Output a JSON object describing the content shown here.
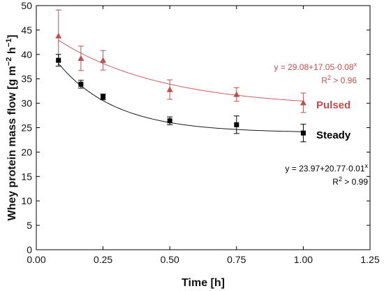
{
  "chart_data": {
    "type": "scatter",
    "title": "",
    "xlabel": "Time [h]",
    "ylabel": "Whey protein mass flow [g m",
    "ylabel_sup1": "−2",
    "ylabel_mid": " h",
    "ylabel_sup2": "−1",
    "ylabel_end": "]",
    "xlim": [
      0.0,
      1.25
    ],
    "ylim": [
      0,
      50
    ],
    "x_ticks": [
      0.0,
      0.25,
      0.5,
      0.75,
      1.0,
      1.25
    ],
    "x_tick_labels": [
      "0.00",
      "0.25",
      "0.50",
      "0.75",
      "1.00",
      "1.25"
    ],
    "y_ticks": [
      0,
      5,
      10,
      15,
      20,
      25,
      30,
      35,
      40,
      45,
      50
    ],
    "y_tick_labels": [
      "0",
      "5",
      "10",
      "15",
      "20",
      "25",
      "30",
      "35",
      "40",
      "45",
      "50"
    ],
    "grid": false,
    "series": [
      {
        "name": "Pulsed",
        "marker": "triangle",
        "color": "#c0504d",
        "x": [
          0.083,
          0.167,
          0.25,
          0.5,
          0.75,
          1.0
        ],
        "y": [
          43.8,
          39.2,
          38.8,
          32.8,
          31.8,
          30.1
        ],
        "err": [
          5.3,
          2.5,
          2.0,
          2.0,
          1.4,
          2.0
        ],
        "fit": {
          "a": 29.08,
          "b": 17.05,
          "c": 0.08
        }
      },
      {
        "name": "Steady",
        "marker": "square",
        "color": "#000000",
        "x": [
          0.083,
          0.167,
          0.25,
          0.5,
          0.75,
          1.0
        ],
        "y": [
          38.8,
          33.9,
          31.3,
          26.4,
          25.6,
          23.9
        ],
        "err": [
          1.2,
          0.8,
          0.6,
          0.8,
          1.8,
          1.8
        ],
        "fit": {
          "a": 23.97,
          "b": 20.77,
          "c": 0.01
        }
      }
    ],
    "annotations": {
      "pulsed_eq_base": "y = 29.08+17.05·0.08",
      "pulsed_eq_sup": "x",
      "pulsed_r2_pre": "R",
      "pulsed_r2_sup": "2",
      "pulsed_r2_post": " > 0.96",
      "steady_eq_base": "y = 23.97+20.77·0.01",
      "steady_eq_sup": "x",
      "steady_r2_pre": "R",
      "steady_r2_sup": "2",
      "steady_r2_post": " > 0.99"
    }
  }
}
